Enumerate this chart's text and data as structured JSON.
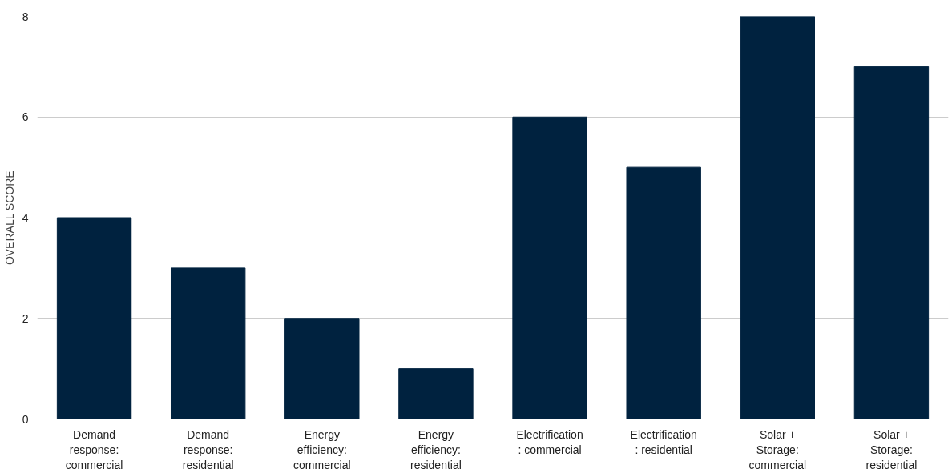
{
  "chart_data": {
    "type": "bar",
    "ylabel": "OVERALL SCORE",
    "categories": [
      "Demand response: commercial",
      "Demand response: residential",
      "Energy efficiency: commercial",
      "Energy efficiency: residential",
      "Electrification: commercial",
      "Electrification: residential",
      "Solar + Storage: commercial",
      "Solar + Storage: residential"
    ],
    "values": [
      4,
      3,
      2,
      1,
      6,
      5,
      8,
      7
    ],
    "color": "#00223f",
    "ylim": [
      0,
      8
    ],
    "yticks": [
      0,
      2,
      4,
      6,
      8
    ],
    "grid": "y"
  }
}
